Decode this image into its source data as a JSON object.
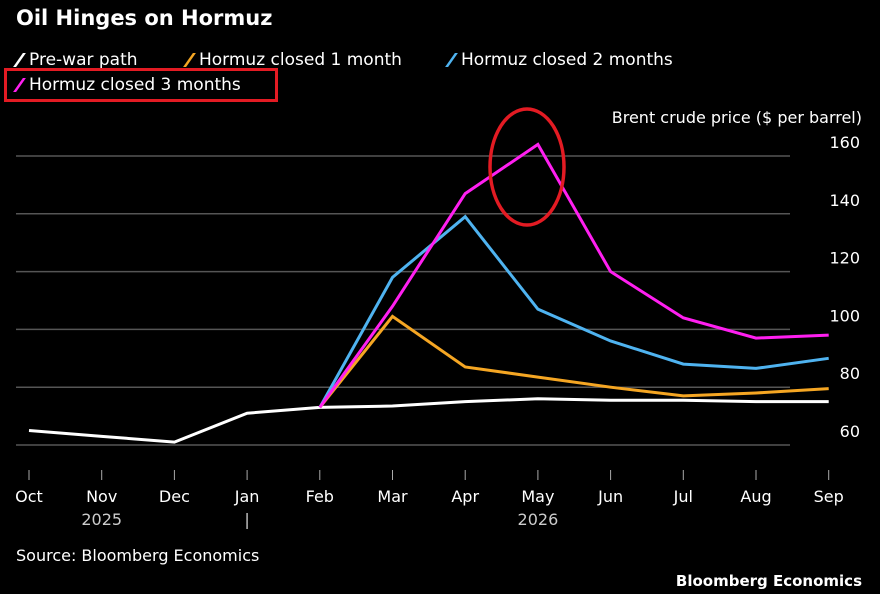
{
  "title": "Oil Hinges on Hormuz",
  "source": "Source: Bloomberg Economics",
  "brand": "Bloomberg Economics",
  "chart_data": {
    "type": "line",
    "title": "Oil Hinges on Hormuz",
    "ylabel": "Brent crude price ($ per barrel)",
    "xlabel": "",
    "categories": [
      "Oct",
      "Nov",
      "Dec",
      "Jan",
      "Feb",
      "Mar",
      "Apr",
      "May",
      "Jun",
      "Jul",
      "Aug",
      "Sep"
    ],
    "year_labels": [
      {
        "label": "2025",
        "at": "Nov"
      },
      {
        "label": "2026",
        "at": "May"
      }
    ],
    "year_divider": "|",
    "ylim": [
      55,
      165
    ],
    "yticks": [
      60,
      80,
      100,
      120,
      140,
      160
    ],
    "grid": true,
    "legend_placement": "top",
    "series": [
      {
        "name": "Pre-war path",
        "color": "#ffffff",
        "values": [
          65,
          63,
          61,
          71,
          73,
          73.5,
          75,
          76,
          75.5,
          75.5,
          75,
          75
        ]
      },
      {
        "name": "Hormuz closed 1 month",
        "color": "#f5a623",
        "values": [
          null,
          null,
          null,
          null,
          73,
          104.5,
          87,
          83.5,
          80,
          77,
          78,
          79.5
        ]
      },
      {
        "name": "Hormuz closed 2 months",
        "color": "#4fb3f0",
        "values": [
          null,
          null,
          null,
          null,
          73,
          118,
          139,
          107,
          96,
          88,
          86.5,
          90
        ]
      },
      {
        "name": "Hormuz closed 3 months",
        "color": "#ff1ff0",
        "values": [
          null,
          null,
          null,
          null,
          73,
          108,
          147,
          164,
          120,
          104,
          97,
          98
        ]
      }
    ],
    "annotations": {
      "highlight_color": "#e31b23",
      "circled_point": "May peak of Hormuz closed 3 months",
      "boxed_legend": "Hormuz closed 3 months"
    }
  }
}
